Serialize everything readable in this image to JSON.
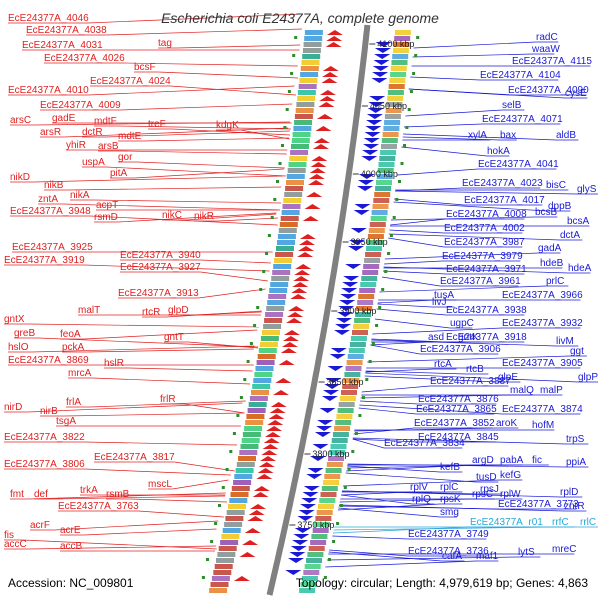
{
  "title": "Escherichia coli E24377A, complete genome",
  "footer": {
    "accession": "Accession: NC_009801",
    "summary": "Topology: circular; Length: 4,979,619 bp; Genes: 4,863"
  },
  "colors": {
    "left_strand": "#e02020",
    "right_strand": "#1a1ad6",
    "rna": "#29a8d8",
    "backbone": "#808080"
  },
  "scale_ticks": [
    "4100 kbp",
    "4050 kbp",
    "4000 kbp",
    "3950 kbp",
    "3900 kbp",
    "3850 kbp",
    "3800 kbp",
    "3750 kbp"
  ],
  "left_labels": [
    "EcE24377A_4046",
    "EcE24377A_4038",
    "tag",
    "EcE24377A_4031",
    "EcE24377A_4026",
    "bcsF",
    "EcE24377A_4024",
    "EcE24377A_4010",
    "EcE24377A_4009",
    "arsC",
    "gadE",
    "mdtF",
    "treF",
    "kdgK",
    "arsR",
    "dctR",
    "mdtE",
    "yhiR",
    "arsB",
    "gor",
    "uspA",
    "pitA",
    "nikD",
    "nikB",
    "acpT",
    "nikA",
    "zntA",
    "EcE24377A_3948",
    "rsmD",
    "nikC",
    "nikR",
    "EcE24377A_3925",
    "EcE24377A_3940",
    "EcE24377A_3919",
    "EcE24377A_3927",
    "EcE24377A_3913",
    "rtcR",
    "glpD",
    "malT",
    "gntX",
    "gntT",
    "greB",
    "feoA",
    "hslO",
    "pckA",
    "EcE24377A_3869",
    "hslR",
    "mrcA",
    "frlR",
    "nirD",
    "frlA",
    "nirB",
    "tsgA",
    "EcE24377A_3822",
    "EcE24377A_3806",
    "EcE24377A_3817",
    "mscL",
    "fmt",
    "def",
    "trkA",
    "rsmB",
    "EcE24377A_3763",
    "fis",
    "acrF",
    "acrE",
    "accC",
    "accB"
  ],
  "right_labels": [
    "radC",
    "waaW",
    "EcE24377A_4115",
    "EcE24377A_4104",
    "EcE24377A_4090",
    "cysE",
    "selB",
    "EcE24377A_4071",
    "xylA",
    "bax",
    "aldB",
    "hokA",
    "EcE24377A_4041",
    "EcE24377A_4023",
    "bisC",
    "glyS",
    "EcE24377A_4017",
    "dppB",
    "EcE24377A_4008",
    "bcsB",
    "bcsA",
    "EcE24377A_4002",
    "dctA",
    "EcE24377A_3987",
    "gadA",
    "EcE24377A_3979",
    "hdeB",
    "EcE24377A_3971",
    "hdeA",
    "EcE24377A_3961",
    "prlC",
    "tusA",
    "EcE24377A_3966",
    "livJ",
    "EcE24377A_3938",
    "ugpC",
    "EcE24377A_3932",
    "asd",
    "gntK",
    "EcE24377A_3918",
    "livM",
    "EcE24377A_3906",
    "ggt",
    "rtcA",
    "EcE24377A_3905",
    "rtcB",
    "glpE",
    "glpP",
    "EcE24377A_3887",
    "malQ",
    "malP",
    "EcE24377A_3876",
    "EcE24377A_3865",
    "EcE24377A_3874",
    "EcE24377A_3852",
    "aroK",
    "hofM",
    "EcE24377A_3845",
    "trpS",
    "EcE24377A_3834",
    "argD",
    "pabA",
    "fic",
    "ppiA",
    "kefB",
    "tusD",
    "kefG",
    "rplV",
    "rplC",
    "rpsJ",
    "rplD",
    "rplQ",
    "rpsK",
    "rpsC",
    "rplW",
    "EcE24377A_3773",
    "zntR",
    "smg",
    "EcE24377A_r01",
    "rrfC",
    "rrlC",
    "EcE24377A_3749",
    "EcE24377A_3736",
    "cafA",
    "maf1",
    "lytS",
    "mreC"
  ]
}
